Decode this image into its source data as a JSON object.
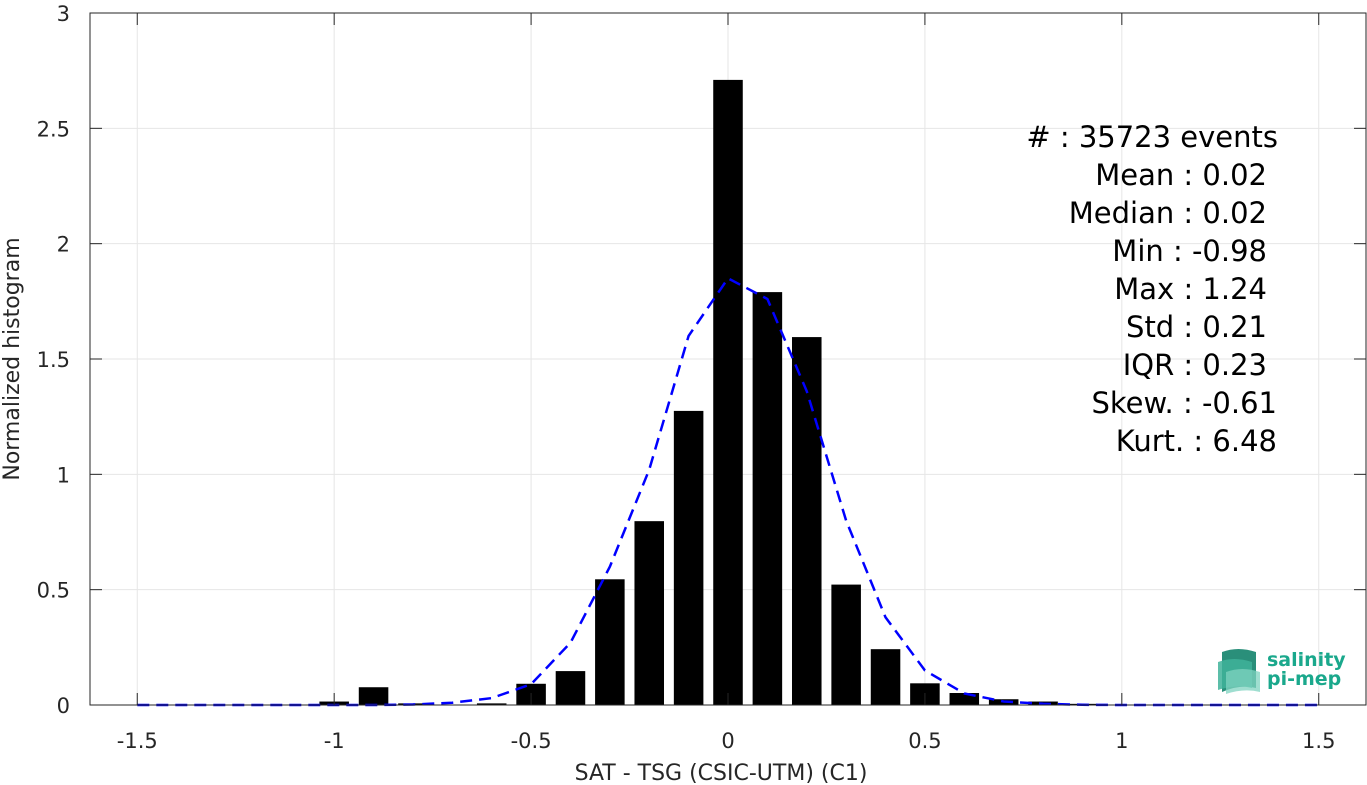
{
  "chart_data": {
    "type": "bar",
    "xlabel": "SAT - TSG (CSIC-UTM) (C1)",
    "ylabel": "Normalized histogram",
    "xlim": [
      -1.62,
      1.62
    ],
    "ylim": [
      0,
      3
    ],
    "xticks": [
      -1.5,
      -1,
      -0.5,
      0,
      0.5,
      1,
      1.5
    ],
    "xtick_labels": [
      "-1.5",
      "-1",
      "-0.5",
      "0",
      "0.5",
      "1",
      "1.5"
    ],
    "yticks": [
      0,
      0.5,
      1,
      1.5,
      2,
      2.5,
      3
    ],
    "ytick_labels": [
      "0",
      "0.5",
      "1",
      "1.5",
      "2",
      "2.5",
      "3"
    ],
    "grid": true,
    "bar_width": 0.075,
    "bar_color": "#000000",
    "bars": {
      "x": [
        -1.0,
        -0.9,
        -0.8,
        -0.6,
        -0.5,
        -0.4,
        -0.3,
        -0.2,
        -0.1,
        0.0,
        0.1,
        0.2,
        0.3,
        0.4,
        0.5,
        0.6,
        0.7,
        0.8,
        0.9
      ],
      "y": [
        0.015,
        0.077,
        0.007,
        0.007,
        0.092,
        0.147,
        0.545,
        0.797,
        1.275,
        2.71,
        1.79,
        1.595,
        0.522,
        0.242,
        0.094,
        0.052,
        0.025,
        0.015,
        0.005
      ]
    },
    "fit_line": {
      "style": "dashed",
      "color": "#0000ff",
      "x": [
        -1.5,
        -1.4,
        -1.3,
        -1.2,
        -1.1,
        -1.0,
        -0.9,
        -0.8,
        -0.7,
        -0.6,
        -0.5,
        -0.4,
        -0.3,
        -0.2,
        -0.1,
        0.0,
        0.1,
        0.2,
        0.3,
        0.4,
        0.5,
        0.6,
        0.7,
        0.8,
        0.9,
        1.0,
        1.1,
        1.2,
        1.3,
        1.4,
        1.5
      ],
      "y": [
        0,
        0,
        0,
        0,
        0,
        0,
        0,
        0.002,
        0.01,
        0.03,
        0.09,
        0.27,
        0.6,
        1.02,
        1.6,
        1.85,
        1.76,
        1.36,
        0.8,
        0.38,
        0.15,
        0.05,
        0.015,
        0.005,
        0.001,
        0,
        0,
        0,
        0,
        0,
        0
      ]
    },
    "stats": [
      {
        "text": "#  : 35723 events"
      },
      {
        "text": "Mean : 0.02"
      },
      {
        "text": "Median : 0.02"
      },
      {
        "text": "Min : -0.98"
      },
      {
        "text": "Max : 1.24"
      },
      {
        "text": "Std : 0.21"
      },
      {
        "text": "IQR : 0.23"
      },
      {
        "text": "Skew. : -0.61"
      },
      {
        "text": "Kurt. : 6.48"
      }
    ]
  },
  "logo": {
    "line1": "salinity",
    "line2": "pi-mep",
    "color": "#1aa88c"
  }
}
